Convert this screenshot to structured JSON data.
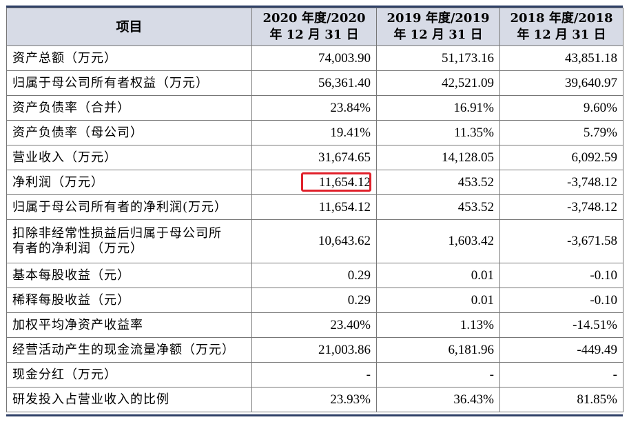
{
  "table": {
    "headers": [
      {
        "line1": "项目",
        "line2": ""
      },
      {
        "line1": "2020 年度/2020",
        "line2": "年 12 月 31 日"
      },
      {
        "line1": "2019 年度/2019",
        "line2": "年 12 月 31 日"
      },
      {
        "line1": "2018 年度/2018",
        "line2": "年 12 月 31 日"
      }
    ],
    "rows": [
      {
        "label": "资产总额（万元）",
        "v2020": "74,003.90",
        "v2019": "51,173.16",
        "v2018": "43,851.18"
      },
      {
        "label": "归属于母公司所有者权益（万元）",
        "v2020": "56,361.40",
        "v2019": "42,521.09",
        "v2018": "39,640.97"
      },
      {
        "label": "资产负债率（合并）",
        "v2020": "23.84%",
        "v2019": "16.91%",
        "v2018": "9.60%"
      },
      {
        "label": "资产负债率（母公司）",
        "v2020": "19.41%",
        "v2019": "11.35%",
        "v2018": "5.79%"
      },
      {
        "label": "营业收入（万元）",
        "v2020": "31,674.65",
        "v2019": "14,128.05",
        "v2018": "6,092.59"
      },
      {
        "label": "净利润（万元）",
        "v2020": "11,654.12",
        "v2019": "453.52",
        "v2018": "-3,748.12"
      },
      {
        "label": "归属于母公司所有者的净利润(万元）",
        "v2020": "11,654.12",
        "v2019": "453.52",
        "v2018": "-3,748.12"
      },
      {
        "label": "扣除非经常性损益后归属于母公司所",
        "label2": "有者的净利润（万元）",
        "v2020": "10,643.62",
        "v2019": "1,603.42",
        "v2018": "-3,671.58"
      },
      {
        "label": "基本每股收益（元）",
        "v2020": "0.29",
        "v2019": "0.01",
        "v2018": "-0.10"
      },
      {
        "label": "稀释每股收益（元）",
        "v2020": "0.29",
        "v2019": "0.01",
        "v2018": "-0.10"
      },
      {
        "label": "加权平均净资产收益率",
        "v2020": "23.40%",
        "v2019": "1.13%",
        "v2018": "-14.51%"
      },
      {
        "label": "经营活动产生的现金流量净额（万元）",
        "v2020": "21,003.86",
        "v2019": "6,181.96",
        "v2018": "-449.49"
      },
      {
        "label": "现金分红（万元）",
        "v2020": "-",
        "v2019": "-",
        "v2018": "-"
      },
      {
        "label": "研发投入占营业收入的比例",
        "v2020": "23.93%",
        "v2019": "36.43%",
        "v2018": "81.85%"
      }
    ]
  },
  "highlight": {
    "color": "#e0202a"
  }
}
